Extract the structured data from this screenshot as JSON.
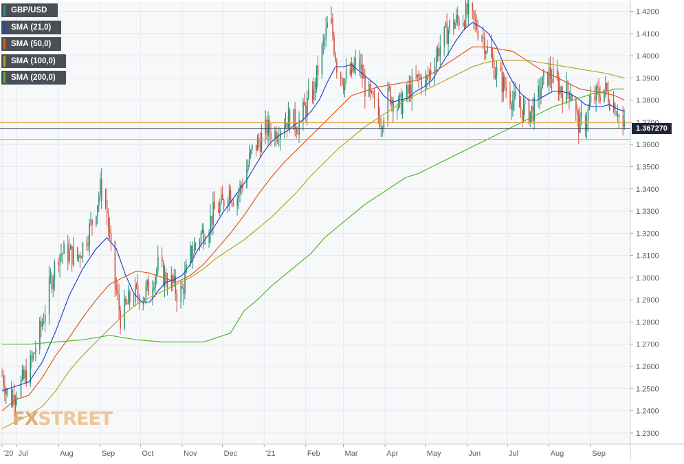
{
  "chart_data": {
    "type": "candlestick",
    "symbol": "GBP/USD",
    "last_price": "1.367270",
    "y_axis": {
      "min": 1.225,
      "max": 1.4245,
      "ticks": [
        "1.4200",
        "1.4100",
        "1.4000",
        "1.3900",
        "1.3800",
        "1.3700",
        "1.3600",
        "1.3500",
        "1.3400",
        "1.3300",
        "1.3200",
        "1.3100",
        "1.3000",
        "1.2900",
        "1.2800",
        "1.2700",
        "1.2600",
        "1.2500",
        "1.2400",
        "1.2300"
      ]
    },
    "x_axis": {
      "labels": [
        {
          "text": "'20",
          "day": 0
        },
        {
          "text": "Jul",
          "day": 11
        },
        {
          "text": "Aug",
          "day": 42
        },
        {
          "text": "Sep",
          "day": 73
        },
        {
          "text": "Oct",
          "day": 103
        },
        {
          "text": "Nov",
          "day": 134
        },
        {
          "text": "Dec",
          "day": 164
        },
        {
          "text": "'21",
          "day": 195
        },
        {
          "text": "Feb",
          "day": 226
        },
        {
          "text": "Mar",
          "day": 254
        },
        {
          "text": "Apr",
          "day": 285
        },
        {
          "text": "May",
          "day": 315
        },
        {
          "text": "Jun",
          "day": 346
        },
        {
          "text": "Jul",
          "day": 376
        },
        {
          "text": "Aug",
          "day": 407
        },
        {
          "text": "Sep",
          "day": 438
        }
      ]
    },
    "horizontal_levels": [
      {
        "name": "resistance",
        "value": 1.3698,
        "color": "#e8a33a"
      },
      {
        "name": "current",
        "value": 1.36727,
        "color": "#2b3550"
      },
      {
        "name": "support",
        "value": 1.3623,
        "color": "#e8a33a"
      }
    ],
    "price_path": [
      [
        0,
        1.256
      ],
      [
        6,
        1.244
      ],
      [
        10,
        1.249
      ],
      [
        16,
        1.254
      ],
      [
        22,
        1.262
      ],
      [
        30,
        1.28
      ],
      [
        36,
        1.298
      ],
      [
        42,
        1.311
      ],
      [
        50,
        1.311
      ],
      [
        56,
        1.309
      ],
      [
        62,
        1.317
      ],
      [
        68,
        1.327
      ],
      [
        73,
        1.34
      ],
      [
        77,
        1.335
      ],
      [
        82,
        1.305
      ],
      [
        88,
        1.282
      ],
      [
        95,
        1.29
      ],
      [
        100,
        1.293
      ],
      [
        105,
        1.292
      ],
      [
        110,
        1.296
      ],
      [
        116,
        1.305
      ],
      [
        121,
        1.3
      ],
      [
        126,
        1.298
      ],
      [
        131,
        1.292
      ],
      [
        134,
        1.294
      ],
      [
        140,
        1.31
      ],
      [
        146,
        1.318
      ],
      [
        152,
        1.322
      ],
      [
        158,
        1.33
      ],
      [
        164,
        1.333
      ],
      [
        168,
        1.34
      ],
      [
        174,
        1.335
      ],
      [
        180,
        1.345
      ],
      [
        186,
        1.357
      ],
      [
        192,
        1.362
      ],
      [
        197,
        1.367
      ],
      [
        203,
        1.365
      ],
      [
        208,
        1.37
      ],
      [
        214,
        1.372
      ],
      [
        220,
        1.369
      ],
      [
        226,
        1.377
      ],
      [
        232,
        1.385
      ],
      [
        238,
        1.402
      ],
      [
        244,
        1.418
      ],
      [
        249,
        1.396
      ],
      [
        254,
        1.389
      ],
      [
        260,
        1.392
      ],
      [
        265,
        1.398
      ],
      [
        270,
        1.386
      ],
      [
        276,
        1.378
      ],
      [
        282,
        1.371
      ],
      [
        288,
        1.383
      ],
      [
        295,
        1.377
      ],
      [
        301,
        1.382
      ],
      [
        307,
        1.388
      ],
      [
        312,
        1.39
      ],
      [
        315,
        1.387
      ],
      [
        321,
        1.398
      ],
      [
        327,
        1.406
      ],
      [
        333,
        1.413
      ],
      [
        339,
        1.416
      ],
      [
        346,
        1.419
      ],
      [
        352,
        1.414
      ],
      [
        357,
        1.41
      ],
      [
        363,
        1.399
      ],
      [
        369,
        1.391
      ],
      [
        375,
        1.385
      ],
      [
        381,
        1.379
      ],
      [
        386,
        1.376
      ],
      [
        391,
        1.374
      ],
      [
        396,
        1.376
      ],
      [
        401,
        1.386
      ],
      [
        407,
        1.392
      ],
      [
        412,
        1.388
      ],
      [
        418,
        1.383
      ],
      [
        423,
        1.385
      ],
      [
        428,
        1.37
      ],
      [
        433,
        1.368
      ],
      [
        438,
        1.379
      ],
      [
        444,
        1.383
      ],
      [
        448,
        1.385
      ],
      [
        453,
        1.38
      ],
      [
        458,
        1.376
      ],
      [
        461,
        1.367
      ]
    ],
    "series": [
      {
        "name": "SMA (21,0)",
        "color": "#2343c8",
        "points": [
          [
            0,
            1.249
          ],
          [
            10,
            1.251
          ],
          [
            20,
            1.253
          ],
          [
            30,
            1.262
          ],
          [
            40,
            1.276
          ],
          [
            50,
            1.292
          ],
          [
            60,
            1.304
          ],
          [
            70,
            1.313
          ],
          [
            78,
            1.318
          ],
          [
            85,
            1.313
          ],
          [
            92,
            1.301
          ],
          [
            98,
            1.293
          ],
          [
            104,
            1.289
          ],
          [
            110,
            1.289
          ],
          [
            116,
            1.294
          ],
          [
            122,
            1.298
          ],
          [
            128,
            1.299
          ],
          [
            134,
            1.301
          ],
          [
            140,
            1.306
          ],
          [
            146,
            1.313
          ],
          [
            152,
            1.318
          ],
          [
            158,
            1.323
          ],
          [
            164,
            1.329
          ],
          [
            170,
            1.334
          ],
          [
            176,
            1.339
          ],
          [
            182,
            1.344
          ],
          [
            188,
            1.35
          ],
          [
            194,
            1.356
          ],
          [
            200,
            1.361
          ],
          [
            206,
            1.364
          ],
          [
            212,
            1.366
          ],
          [
            218,
            1.369
          ],
          [
            224,
            1.371
          ],
          [
            230,
            1.375
          ],
          [
            236,
            1.38
          ],
          [
            242,
            1.388
          ],
          [
            248,
            1.395
          ],
          [
            254,
            1.395
          ],
          [
            260,
            1.396
          ],
          [
            266,
            1.393
          ],
          [
            272,
            1.39
          ],
          [
            278,
            1.387
          ],
          [
            284,
            1.382
          ],
          [
            290,
            1.379
          ],
          [
            296,
            1.38
          ],
          [
            302,
            1.381
          ],
          [
            308,
            1.384
          ],
          [
            314,
            1.386
          ],
          [
            320,
            1.389
          ],
          [
            326,
            1.395
          ],
          [
            332,
            1.401
          ],
          [
            338,
            1.407
          ],
          [
            344,
            1.412
          ],
          [
            350,
            1.415
          ],
          [
            356,
            1.413
          ],
          [
            362,
            1.41
          ],
          [
            368,
            1.404
          ],
          [
            374,
            1.395
          ],
          [
            380,
            1.388
          ],
          [
            386,
            1.383
          ],
          [
            392,
            1.38
          ],
          [
            398,
            1.38
          ],
          [
            404,
            1.382
          ],
          [
            410,
            1.384
          ],
          [
            416,
            1.384
          ],
          [
            422,
            1.383
          ],
          [
            428,
            1.381
          ],
          [
            434,
            1.378
          ],
          [
            440,
            1.377
          ],
          [
            446,
            1.377
          ],
          [
            452,
            1.378
          ],
          [
            458,
            1.376
          ],
          [
            463,
            1.375
          ]
        ]
      },
      {
        "name": "SMA (50,0)",
        "color": "#e05a1c",
        "points": [
          [
            0,
            1.24
          ],
          [
            10,
            1.245
          ],
          [
            20,
            1.247
          ],
          [
            30,
            1.255
          ],
          [
            40,
            1.265
          ],
          [
            50,
            1.273
          ],
          [
            60,
            1.282
          ],
          [
            70,
            1.29
          ],
          [
            80,
            1.297
          ],
          [
            90,
            1.3
          ],
          [
            100,
            1.303
          ],
          [
            110,
            1.302
          ],
          [
            120,
            1.3
          ],
          [
            130,
            1.298
          ],
          [
            140,
            1.301
          ],
          [
            150,
            1.306
          ],
          [
            160,
            1.313
          ],
          [
            170,
            1.32
          ],
          [
            180,
            1.328
          ],
          [
            190,
            1.337
          ],
          [
            200,
            1.345
          ],
          [
            210,
            1.352
          ],
          [
            220,
            1.358
          ],
          [
            230,
            1.364
          ],
          [
            240,
            1.37
          ],
          [
            250,
            1.376
          ],
          [
            260,
            1.382
          ],
          [
            270,
            1.384
          ],
          [
            280,
            1.386
          ],
          [
            290,
            1.387
          ],
          [
            300,
            1.388
          ],
          [
            310,
            1.389
          ],
          [
            320,
            1.392
          ],
          [
            330,
            1.396
          ],
          [
            340,
            1.4
          ],
          [
            350,
            1.404
          ],
          [
            360,
            1.404
          ],
          [
            370,
            1.403
          ],
          [
            380,
            1.402
          ],
          [
            390,
            1.398
          ],
          [
            400,
            1.394
          ],
          [
            410,
            1.391
          ],
          [
            420,
            1.388
          ],
          [
            430,
            1.385
          ],
          [
            440,
            1.384
          ],
          [
            450,
            1.383
          ],
          [
            456,
            1.382
          ],
          [
            463,
            1.38
          ]
        ]
      },
      {
        "name": "SMA (100,0)",
        "color": "#b8a51a",
        "points": [
          [
            0,
            1.232
          ],
          [
            10,
            1.235
          ],
          [
            20,
            1.238
          ],
          [
            30,
            1.242
          ],
          [
            40,
            1.249
          ],
          [
            50,
            1.258
          ],
          [
            60,
            1.265
          ],
          [
            70,
            1.271
          ],
          [
            80,
            1.277
          ],
          [
            90,
            1.283
          ],
          [
            100,
            1.288
          ],
          [
            110,
            1.291
          ],
          [
            120,
            1.294
          ],
          [
            130,
            1.297
          ],
          [
            140,
            1.3
          ],
          [
            150,
            1.304
          ],
          [
            160,
            1.309
          ],
          [
            170,
            1.313
          ],
          [
            180,
            1.317
          ],
          [
            190,
            1.322
          ],
          [
            200,
            1.327
          ],
          [
            210,
            1.333
          ],
          [
            220,
            1.339
          ],
          [
            230,
            1.346
          ],
          [
            240,
            1.352
          ],
          [
            250,
            1.358
          ],
          [
            260,
            1.363
          ],
          [
            270,
            1.368
          ],
          [
            280,
            1.372
          ],
          [
            290,
            1.376
          ],
          [
            300,
            1.38
          ],
          [
            310,
            1.383
          ],
          [
            320,
            1.386
          ],
          [
            330,
            1.389
          ],
          [
            340,
            1.392
          ],
          [
            350,
            1.395
          ],
          [
            360,
            1.397
          ],
          [
            370,
            1.398
          ],
          [
            380,
            1.398
          ],
          [
            390,
            1.398
          ],
          [
            400,
            1.397
          ],
          [
            410,
            1.396
          ],
          [
            420,
            1.395
          ],
          [
            430,
            1.394
          ],
          [
            440,
            1.393
          ],
          [
            450,
            1.392
          ],
          [
            456,
            1.391
          ],
          [
            463,
            1.39
          ]
        ]
      },
      {
        "name": "SMA (200,0)",
        "color": "#4fb82a",
        "points": [
          [
            0,
            1.27
          ],
          [
            20,
            1.27
          ],
          [
            40,
            1.271
          ],
          [
            60,
            1.272
          ],
          [
            80,
            1.274
          ],
          [
            100,
            1.272
          ],
          [
            120,
            1.271
          ],
          [
            140,
            1.271
          ],
          [
            150,
            1.271
          ],
          [
            160,
            1.273
          ],
          [
            170,
            1.275
          ],
          [
            180,
            1.285
          ],
          [
            190,
            1.29
          ],
          [
            200,
            1.296
          ],
          [
            210,
            1.301
          ],
          [
            220,
            1.306
          ],
          [
            230,
            1.311
          ],
          [
            240,
            1.318
          ],
          [
            250,
            1.323
          ],
          [
            260,
            1.328
          ],
          [
            270,
            1.333
          ],
          [
            280,
            1.337
          ],
          [
            290,
            1.341
          ],
          [
            300,
            1.345
          ],
          [
            310,
            1.347
          ],
          [
            320,
            1.35
          ],
          [
            330,
            1.353
          ],
          [
            340,
            1.356
          ],
          [
            350,
            1.359
          ],
          [
            360,
            1.362
          ],
          [
            370,
            1.365
          ],
          [
            380,
            1.368
          ],
          [
            390,
            1.371
          ],
          [
            400,
            1.374
          ],
          [
            410,
            1.377
          ],
          [
            420,
            1.379
          ],
          [
            430,
            1.381
          ],
          [
            440,
            1.383
          ],
          [
            450,
            1.384
          ],
          [
            456,
            1.385
          ],
          [
            463,
            1.385
          ]
        ]
      }
    ]
  },
  "legend": [
    {
      "label": "GBP/USD",
      "color": "#2a8f80"
    },
    {
      "label": "SMA (21,0)",
      "color": "#2343c8"
    },
    {
      "label": "SMA (50,0)",
      "color": "#e05a1c"
    },
    {
      "label": "SMA (100,0)",
      "color": "#b8a51a"
    },
    {
      "label": "SMA (200,0)",
      "color": "#4fb82a"
    }
  ],
  "price_tag": "1.367270",
  "watermark": {
    "fx": "FX",
    "rest": "STREET"
  },
  "colors": {
    "up": "#2a8f70",
    "down": "#d0533f",
    "grid": "#e6e8ee",
    "axis_text": "#555a63"
  }
}
